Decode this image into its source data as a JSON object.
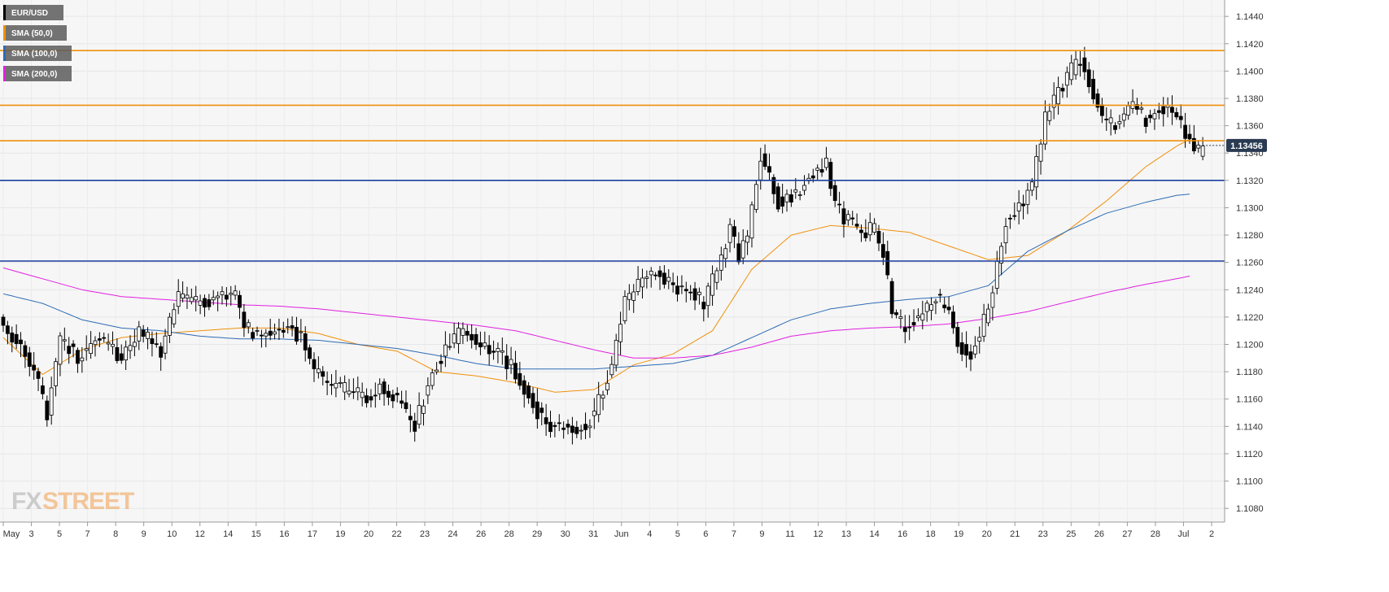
{
  "chart_data": {
    "type": "candlestick",
    "symbol": "EUR/USD",
    "legend": [
      {
        "label": "EUR/USD",
        "color": "#000000"
      },
      {
        "label": "SMA (50,0)",
        "color": "#f0900c"
      },
      {
        "label": "SMA (100,0)",
        "color": "#2d6bb3"
      },
      {
        "label": "SMA (200,0)",
        "color": "#e020e0"
      }
    ],
    "y_range": [
      1.107,
      1.1452
    ],
    "y_ticks": [
      "1.1080",
      "1.1100",
      "1.1120",
      "1.1140",
      "1.1160",
      "1.1180",
      "1.1200",
      "1.1220",
      "1.1240",
      "1.1260",
      "1.1280",
      "1.1300",
      "1.1320",
      "1.1340",
      "1.1360",
      "1.1380",
      "1.1400",
      "1.1420",
      "1.1440"
    ],
    "x_ticks": [
      "May",
      "3",
      "5",
      "7",
      "8",
      "9",
      "10",
      "12",
      "14",
      "15",
      "16",
      "17",
      "19",
      "20",
      "22",
      "23",
      "24",
      "26",
      "28",
      "29",
      "30",
      "31",
      "Jun",
      "4",
      "5",
      "6",
      "7",
      "9",
      "11",
      "12",
      "13",
      "14",
      "16",
      "18",
      "19",
      "20",
      "21",
      "23",
      "25",
      "26",
      "27",
      "28",
      "Jul",
      "2"
    ],
    "current_price": "1.13456",
    "horizontal_levels": [
      {
        "value": 1.1415,
        "color": "#f0900c"
      },
      {
        "value": 1.1375,
        "color": "#f0900c"
      },
      {
        "value": 1.1349,
        "color": "#f0900c"
      },
      {
        "value": 1.132,
        "color": "#1a3fa0"
      },
      {
        "value": 1.1261,
        "color": "#1a3fa0"
      }
    ],
    "price_anchors": [
      [
        0,
        1.1215
      ],
      [
        4,
        1.12
      ],
      [
        7,
        1.118
      ],
      [
        10,
        1.115
      ],
      [
        13,
        1.1205
      ],
      [
        17,
        1.119
      ],
      [
        22,
        1.1205
      ],
      [
        27,
        1.119
      ],
      [
        31,
        1.121
      ],
      [
        36,
        1.1195
      ],
      [
        40,
        1.1235
      ],
      [
        44,
        1.123
      ],
      [
        49,
        1.1235
      ],
      [
        53,
        1.1235
      ],
      [
        55,
        1.1215
      ],
      [
        58,
        1.1205
      ],
      [
        62,
        1.121
      ],
      [
        65,
        1.1215
      ],
      [
        68,
        1.1205
      ],
      [
        71,
        1.118
      ],
      [
        75,
        1.117
      ],
      [
        79,
        1.1165
      ],
      [
        83,
        1.116
      ],
      [
        86,
        1.117
      ],
      [
        90,
        1.116
      ],
      [
        94,
        1.114
      ],
      [
        98,
        1.118
      ],
      [
        101,
        1.1195
      ],
      [
        105,
        1.121
      ],
      [
        109,
        1.12
      ],
      [
        113,
        1.1195
      ],
      [
        117,
        1.118
      ],
      [
        121,
        1.1155
      ],
      [
        125,
        1.114
      ],
      [
        129,
        1.114
      ],
      [
        133,
        1.114
      ],
      [
        135,
        1.115
      ],
      [
        139,
        1.1185
      ],
      [
        142,
        1.123
      ],
      [
        145,
        1.1245
      ],
      [
        149,
        1.1255
      ],
      [
        153,
        1.124
      ],
      [
        157,
        1.124
      ],
      [
        160,
        1.123
      ],
      [
        163,
        1.1255
      ],
      [
        166,
        1.1285
      ],
      [
        168,
        1.1265
      ],
      [
        170,
        1.128
      ],
      [
        173,
        1.134
      ],
      [
        177,
        1.1305
      ],
      [
        181,
        1.131
      ],
      [
        185,
        1.1325
      ],
      [
        188,
        1.1335
      ],
      [
        190,
        1.13
      ],
      [
        193,
        1.129
      ],
      [
        196,
        1.128
      ],
      [
        199,
        1.1285
      ],
      [
        201,
        1.1265
      ],
      [
        203,
        1.1225
      ],
      [
        206,
        1.121
      ],
      [
        209,
        1.122
      ],
      [
        213,
        1.1235
      ],
      [
        216,
        1.1225
      ],
      [
        218,
        1.12
      ],
      [
        221,
        1.1195
      ],
      [
        223,
        1.1205
      ],
      [
        226,
        1.124
      ],
      [
        229,
        1.129
      ],
      [
        232,
        1.13
      ],
      [
        235,
        1.1315
      ],
      [
        238,
        1.1365
      ],
      [
        241,
        1.1385
      ],
      [
        244,
        1.14
      ],
      [
        246,
        1.141
      ],
      [
        249,
        1.1385
      ],
      [
        251,
        1.1365
      ],
      [
        254,
        1.136
      ],
      [
        257,
        1.1375
      ],
      [
        261,
        1.1365
      ],
      [
        263,
        1.137
      ],
      [
        266,
        1.1375
      ],
      [
        269,
        1.136
      ],
      [
        271,
        1.135
      ],
      [
        273,
        1.134
      ],
      [
        274,
        1.1345
      ]
    ],
    "sma50_anchors": [
      [
        0,
        1.1205
      ],
      [
        9,
        1.1178
      ],
      [
        18,
        1.1196
      ],
      [
        27,
        1.1205
      ],
      [
        36,
        1.1208
      ],
      [
        45,
        1.121
      ],
      [
        54,
        1.1212
      ],
      [
        63,
        1.1212
      ],
      [
        72,
        1.1208
      ],
      [
        81,
        1.12
      ],
      [
        90,
        1.1195
      ],
      [
        99,
        1.118
      ],
      [
        108,
        1.1177
      ],
      [
        117,
        1.1172
      ],
      [
        126,
        1.1165
      ],
      [
        135,
        1.1167
      ],
      [
        144,
        1.1185
      ],
      [
        153,
        1.1193
      ],
      [
        162,
        1.121
      ],
      [
        171,
        1.1255
      ],
      [
        180,
        1.128
      ],
      [
        189,
        1.1287
      ],
      [
        198,
        1.1285
      ],
      [
        207,
        1.1282
      ],
      [
        216,
        1.1272
      ],
      [
        225,
        1.1262
      ],
      [
        234,
        1.1265
      ],
      [
        243,
        1.1283
      ],
      [
        252,
        1.1305
      ],
      [
        261,
        1.133
      ],
      [
        268,
        1.1345
      ],
      [
        271,
        1.135
      ]
    ],
    "sma100_anchors": [
      [
        0,
        1.1237
      ],
      [
        9,
        1.123
      ],
      [
        18,
        1.1218
      ],
      [
        27,
        1.1212
      ],
      [
        36,
        1.121
      ],
      [
        45,
        1.1206
      ],
      [
        54,
        1.1204
      ],
      [
        63,
        1.1204
      ],
      [
        72,
        1.1203
      ],
      [
        81,
        1.12
      ],
      [
        90,
        1.1197
      ],
      [
        99,
        1.1192
      ],
      [
        108,
        1.1186
      ],
      [
        117,
        1.1182
      ],
      [
        126,
        1.1182
      ],
      [
        135,
        1.1182
      ],
      [
        144,
        1.1184
      ],
      [
        153,
        1.1186
      ],
      [
        162,
        1.1192
      ],
      [
        171,
        1.1205
      ],
      [
        180,
        1.1218
      ],
      [
        189,
        1.1226
      ],
      [
        198,
        1.123
      ],
      [
        207,
        1.1233
      ],
      [
        216,
        1.1235
      ],
      [
        225,
        1.1243
      ],
      [
        234,
        1.1268
      ],
      [
        243,
        1.1283
      ],
      [
        252,
        1.1296
      ],
      [
        261,
        1.1304
      ],
      [
        268,
        1.1309
      ],
      [
        271,
        1.131
      ]
    ],
    "sma200_anchors": [
      [
        0,
        1.1256
      ],
      [
        9,
        1.1248
      ],
      [
        18,
        1.124
      ],
      [
        27,
        1.1235
      ],
      [
        36,
        1.1233
      ],
      [
        45,
        1.1231
      ],
      [
        54,
        1.1229
      ],
      [
        63,
        1.1228
      ],
      [
        72,
        1.1226
      ],
      [
        81,
        1.1223
      ],
      [
        90,
        1.122
      ],
      [
        99,
        1.1217
      ],
      [
        108,
        1.1214
      ],
      [
        117,
        1.121
      ],
      [
        126,
        1.1203
      ],
      [
        135,
        1.1196
      ],
      [
        144,
        1.119
      ],
      [
        153,
        1.119
      ],
      [
        162,
        1.1192
      ],
      [
        171,
        1.1198
      ],
      [
        180,
        1.1206
      ],
      [
        189,
        1.121
      ],
      [
        198,
        1.1212
      ],
      [
        207,
        1.1213
      ],
      [
        216,
        1.1215
      ],
      [
        225,
        1.1219
      ],
      [
        234,
        1.1224
      ],
      [
        243,
        1.1231
      ],
      [
        252,
        1.1238
      ],
      [
        261,
        1.1244
      ],
      [
        268,
        1.1248
      ],
      [
        271,
        1.125
      ]
    ],
    "logo": {
      "fx": "FX",
      "street": "STREET"
    },
    "colors": {
      "grid": "#e6e6e6",
      "background": "#f6f6f6",
      "price_tag": "#2a3a52"
    }
  }
}
